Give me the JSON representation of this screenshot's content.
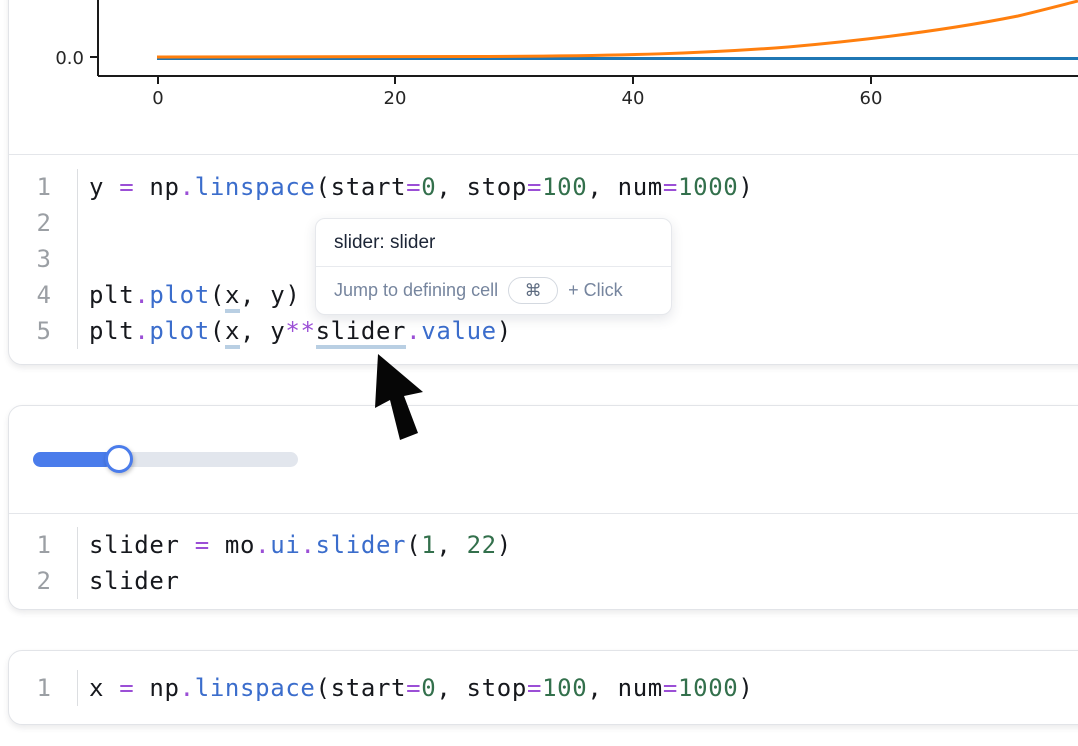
{
  "app": "marimo notebook",
  "chart_data": {
    "type": "line",
    "title": "",
    "xlabel": "",
    "ylabel": "",
    "x_ticks_visible": [
      0,
      20,
      40,
      60
    ],
    "y_ticks_visible": [
      0.0
    ],
    "x_range_visible": [
      0,
      77
    ],
    "note": "top of figure cropped by viewport; y scale dominated by exponential series so linear series appears flat at 0",
    "series": [
      {
        "name": "plt.plot(x, y)",
        "color": "#1f77b4",
        "shape": "flat line at y=0 across full visible x range"
      },
      {
        "name": "plt.plot(x, y**slider.value)",
        "color": "#ff7f0e",
        "shape": "flat at 0 until x~40 then rises steeply toward top-right, leaving top of view near x~77",
        "approx_visible_height_fraction": {
          "x40": 0.02,
          "x50": 0.08,
          "x60": 0.27,
          "x70": 0.62,
          "x77": 0.97
        }
      }
    ],
    "legend": "none",
    "grid": false
  },
  "plot": {
    "ytick": "0.0",
    "xticks": [
      "0",
      "20",
      "40",
      "60"
    ],
    "blue": "#1f77b4",
    "orange": "#ff7f0e"
  },
  "tooltip": {
    "title": "slider: slider",
    "action": "Jump to defining cell",
    "key": "⌘",
    "suffix": "+ Click"
  },
  "cells": [
    {
      "numbers": [
        "1",
        "2",
        "3",
        "4",
        "5"
      ],
      "lines": [
        [
          {
            "t": "y "
          },
          {
            "t": "=",
            "c": "o"
          },
          {
            "t": " np"
          },
          {
            "t": ".",
            "c": "o"
          },
          {
            "t": "linspace",
            "c": "f"
          },
          {
            "t": "("
          },
          {
            "t": "start"
          },
          {
            "t": "=",
            "c": "o"
          },
          {
            "t": "0",
            "c": "n"
          },
          {
            "t": ", stop"
          },
          {
            "t": "=",
            "c": "o"
          },
          {
            "t": "100",
            "c": "n"
          },
          {
            "t": ", num"
          },
          {
            "t": "=",
            "c": "o"
          },
          {
            "t": "1000",
            "c": "n"
          },
          {
            "t": ")"
          }
        ],
        [],
        [],
        [
          {
            "t": "plt"
          },
          {
            "t": ".",
            "c": "o"
          },
          {
            "t": "plot",
            "c": "f"
          },
          {
            "t": "("
          },
          {
            "t": "x",
            "u": true
          },
          {
            "t": ", y)"
          }
        ],
        [
          {
            "t": "plt"
          },
          {
            "t": ".",
            "c": "o"
          },
          {
            "t": "plot",
            "c": "f"
          },
          {
            "t": "("
          },
          {
            "t": "x",
            "u": true
          },
          {
            "t": ", y"
          },
          {
            "t": "**",
            "c": "o"
          },
          {
            "t": "slider",
            "u": true
          },
          {
            "t": ".",
            "c": "o"
          },
          {
            "t": "value",
            "c": "f"
          },
          {
            "t": ")"
          }
        ]
      ]
    },
    {
      "numbers": [
        "1",
        "2"
      ],
      "lines": [
        [
          {
            "t": "slider "
          },
          {
            "t": "=",
            "c": "o"
          },
          {
            "t": " mo"
          },
          {
            "t": ".",
            "c": "o"
          },
          {
            "t": "ui",
            "c": "f"
          },
          {
            "t": ".",
            "c": "o"
          },
          {
            "t": "slider",
            "c": "f"
          },
          {
            "t": "("
          },
          {
            "t": "1",
            "c": "n"
          },
          {
            "t": ", "
          },
          {
            "t": "22",
            "c": "n"
          },
          {
            "t": ")"
          }
        ],
        [
          {
            "t": "slider"
          }
        ]
      ]
    },
    {
      "numbers": [
        "1"
      ],
      "lines": [
        [
          {
            "t": "x "
          },
          {
            "t": "=",
            "c": "o"
          },
          {
            "t": " np"
          },
          {
            "t": ".",
            "c": "o"
          },
          {
            "t": "linspace",
            "c": "f"
          },
          {
            "t": "("
          },
          {
            "t": "start"
          },
          {
            "t": "=",
            "c": "o"
          },
          {
            "t": "0",
            "c": "n"
          },
          {
            "t": ", stop"
          },
          {
            "t": "=",
            "c": "o"
          },
          {
            "t": "100",
            "c": "n"
          },
          {
            "t": ", num"
          },
          {
            "t": "=",
            "c": "o"
          },
          {
            "t": "1000",
            "c": "n"
          },
          {
            "t": ")"
          }
        ]
      ]
    }
  ],
  "colors": {
    "accent_blue": "#4a7ceb",
    "operator": "#9b4fd6",
    "function": "#3b6dcc",
    "number": "#33704c",
    "underline": "#b9cfe3"
  }
}
